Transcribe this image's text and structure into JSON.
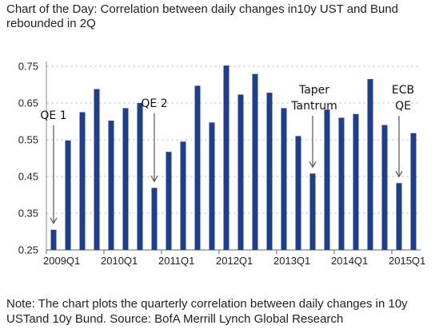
{
  "chart_data": {
    "type": "bar",
    "title": "Chart of the Day: Correlation between daily changes in10y UST and Bund rebounded in 2Q",
    "xlabel": "",
    "ylabel": "",
    "ylim": [
      0.25,
      0.75
    ],
    "yticks": [
      "0.75",
      "0.65",
      "0.55",
      "0.45",
      "0.35",
      "0.25"
    ],
    "ytick_values": [
      0.75,
      0.65,
      0.55,
      0.45,
      0.35,
      0.25
    ],
    "xtick_labels": [
      "2009Q1",
      "2010Q1",
      "2011Q1",
      "2012Q1",
      "2013Q1",
      "2014Q1",
      "2015Q1"
    ],
    "xtick_start_indices": [
      0,
      4,
      8,
      12,
      16,
      20,
      24
    ],
    "grid": true,
    "legend": "none",
    "bar_color": "#1f3f8a",
    "values": [
      0.305,
      0.548,
      0.625,
      0.688,
      0.602,
      0.636,
      0.65,
      0.419,
      0.517,
      0.545,
      0.697,
      0.597,
      0.752,
      0.673,
      0.729,
      0.678,
      0.636,
      0.56,
      0.458,
      0.632,
      0.61,
      0.62,
      0.715,
      0.59,
      0.432,
      0.568
    ],
    "annotations": [
      {
        "lines": [
          "QE 1"
        ],
        "bar_index": 0
      },
      {
        "lines": [
          "QE 2"
        ],
        "bar_index": 7
      },
      {
        "lines": [
          "Taper",
          "Tantrum"
        ],
        "bar_index": 18
      },
      {
        "lines": [
          "ECB",
          "QE"
        ],
        "bar_index": 24
      }
    ]
  },
  "note": "Note: The chart plots the quarterly correlation between daily changes in 10y USTand 10y Bund. Source: BofA Merrill Lynch Global Research"
}
